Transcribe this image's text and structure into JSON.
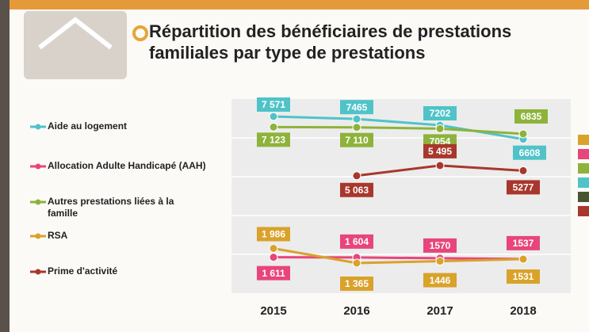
{
  "chart_data": {
    "type": "line",
    "title": "Répartition des bénéficiaires de prestations familiales par type de prestations",
    "categories": [
      "2015",
      "2016",
      "2017",
      "2018"
    ],
    "series": [
      {
        "name": "Aide au logement",
        "color": "#4fc3c8",
        "values": [
          7571,
          7465,
          7202,
          6608
        ],
        "value_labels": [
          "7 571",
          "7465",
          "7202",
          "6608"
        ]
      },
      {
        "name": "Allocation Adulte Handicapé (AAH)",
        "color": "#e8457a",
        "values": [
          1611,
          1604,
          1570,
          1537
        ],
        "value_labels": [
          "1 611",
          "1 604",
          "1570",
          "1537"
        ]
      },
      {
        "name": "Autres prestations liées à la famille",
        "color": "#8db33a",
        "values": [
          7123,
          7110,
          7054,
          6835
        ],
        "value_labels": [
          "7 123",
          "7 110",
          "7054",
          "6835"
        ]
      },
      {
        "name": "RSA",
        "color": "#d9a22a",
        "values": [
          1986,
          1365,
          1446,
          1531
        ],
        "value_labels": [
          "1 986",
          "1 365",
          "1446",
          "1531"
        ]
      },
      {
        "name": "Prime d'activité",
        "color": "#a8372c",
        "values": [
          null,
          5063,
          5495,
          5277
        ],
        "value_labels": [
          null,
          "5 063",
          "5 495",
          "5277"
        ]
      }
    ]
  }
}
